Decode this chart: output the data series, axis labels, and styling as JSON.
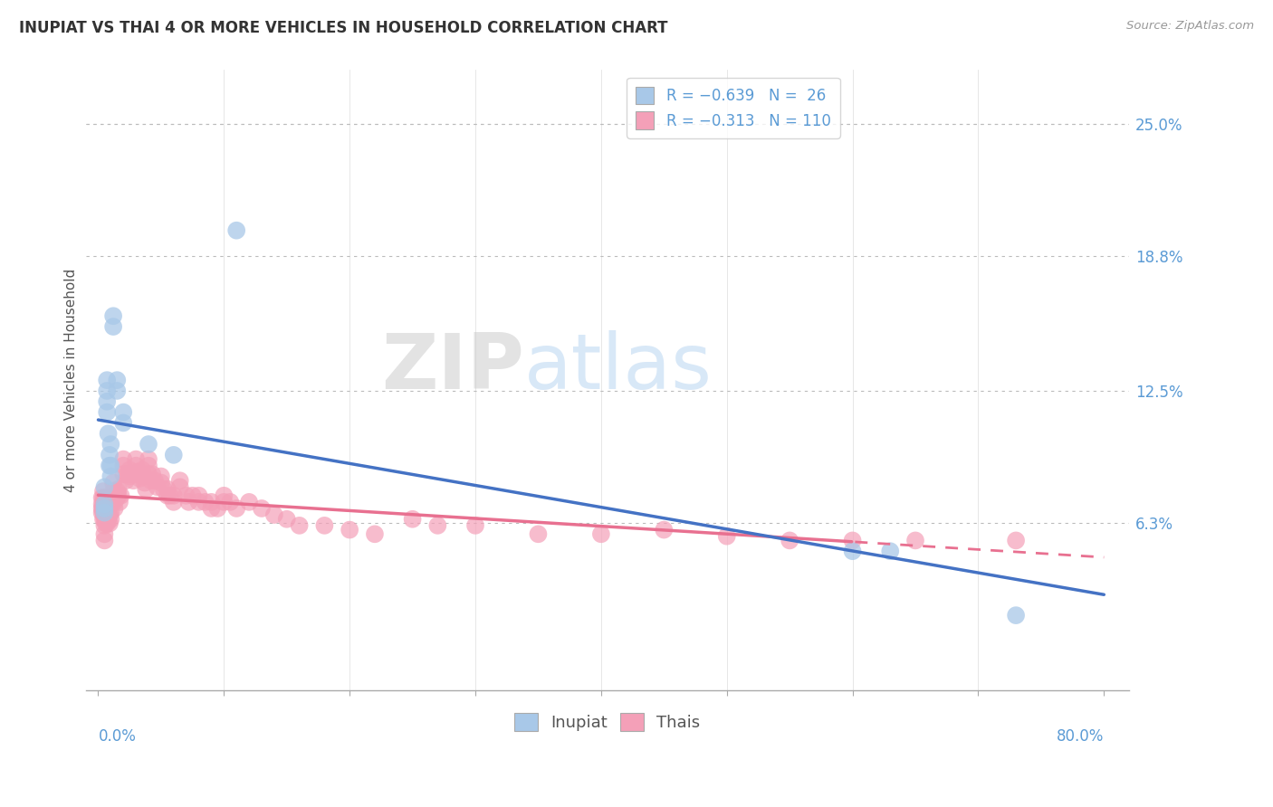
{
  "title": "INUPIAT VS THAI 4 OR MORE VEHICLES IN HOUSEHOLD CORRELATION CHART",
  "source": "Source: ZipAtlas.com",
  "ylabel": "4 or more Vehicles in Household",
  "color_inupiat": "#A8C8E8",
  "color_thai": "#F4A0B8",
  "color_line_inupiat": "#4472C4",
  "color_line_thai": "#E87090",
  "legend_r_inupiat": "R = –0.639",
  "legend_n_inupiat": "N =  26",
  "legend_r_thai": "R = –0.313",
  "legend_n_thai": "N = 110",
  "inupiat_x": [
    0.005,
    0.005,
    0.005,
    0.005,
    0.007,
    0.007,
    0.007,
    0.007,
    0.008,
    0.009,
    0.009,
    0.01,
    0.01,
    0.01,
    0.012,
    0.012,
    0.015,
    0.015,
    0.02,
    0.02,
    0.04,
    0.06,
    0.11,
    0.6,
    0.63,
    0.73
  ],
  "inupiat_y": [
    0.068,
    0.07,
    0.072,
    0.08,
    0.115,
    0.12,
    0.125,
    0.13,
    0.105,
    0.09,
    0.095,
    0.085,
    0.09,
    0.1,
    0.155,
    0.16,
    0.125,
    0.13,
    0.11,
    0.115,
    0.1,
    0.095,
    0.2,
    0.05,
    0.05,
    0.02
  ],
  "thai_x": [
    0.003,
    0.003,
    0.003,
    0.003,
    0.004,
    0.004,
    0.004,
    0.004,
    0.004,
    0.004,
    0.005,
    0.005,
    0.005,
    0.005,
    0.005,
    0.005,
    0.005,
    0.005,
    0.006,
    0.006,
    0.006,
    0.006,
    0.007,
    0.007,
    0.007,
    0.008,
    0.008,
    0.009,
    0.009,
    0.01,
    0.01,
    0.01,
    0.012,
    0.012,
    0.012,
    0.013,
    0.013,
    0.014,
    0.015,
    0.015,
    0.016,
    0.016,
    0.017,
    0.018,
    0.02,
    0.02,
    0.02,
    0.022,
    0.023,
    0.025,
    0.025,
    0.027,
    0.028,
    0.03,
    0.03,
    0.031,
    0.033,
    0.035,
    0.035,
    0.037,
    0.038,
    0.04,
    0.04,
    0.04,
    0.042,
    0.043,
    0.045,
    0.047,
    0.05,
    0.05,
    0.052,
    0.055,
    0.055,
    0.057,
    0.06,
    0.06,
    0.065,
    0.065,
    0.07,
    0.072,
    0.075,
    0.08,
    0.08,
    0.085,
    0.09,
    0.09,
    0.095,
    0.1,
    0.1,
    0.105,
    0.11,
    0.12,
    0.13,
    0.14,
    0.15,
    0.16,
    0.18,
    0.2,
    0.22,
    0.25,
    0.27,
    0.3,
    0.35,
    0.4,
    0.45,
    0.5,
    0.55,
    0.6,
    0.65,
    0.73
  ],
  "thai_y": [
    0.068,
    0.07,
    0.072,
    0.075,
    0.065,
    0.068,
    0.07,
    0.072,
    0.075,
    0.078,
    0.055,
    0.058,
    0.062,
    0.065,
    0.068,
    0.07,
    0.072,
    0.075,
    0.063,
    0.065,
    0.068,
    0.07,
    0.063,
    0.066,
    0.069,
    0.065,
    0.068,
    0.063,
    0.067,
    0.065,
    0.068,
    0.072,
    0.075,
    0.078,
    0.082,
    0.07,
    0.073,
    0.076,
    0.075,
    0.078,
    0.076,
    0.079,
    0.073,
    0.076,
    0.09,
    0.093,
    0.086,
    0.083,
    0.086,
    0.085,
    0.088,
    0.086,
    0.083,
    0.09,
    0.093,
    0.087,
    0.084,
    0.088,
    0.085,
    0.082,
    0.079,
    0.09,
    0.093,
    0.086,
    0.083,
    0.086,
    0.083,
    0.08,
    0.085,
    0.082,
    0.079,
    0.076,
    0.079,
    0.076,
    0.073,
    0.076,
    0.08,
    0.083,
    0.076,
    0.073,
    0.076,
    0.073,
    0.076,
    0.073,
    0.07,
    0.073,
    0.07,
    0.073,
    0.076,
    0.073,
    0.07,
    0.073,
    0.07,
    0.067,
    0.065,
    0.062,
    0.062,
    0.06,
    0.058,
    0.065,
    0.062,
    0.062,
    0.058,
    0.058,
    0.06,
    0.057,
    0.055,
    0.055,
    0.055,
    0.055
  ],
  "xlim": [
    0.0,
    0.8
  ],
  "ylim": [
    0.0,
    0.27
  ],
  "ytick_vals": [
    0.063,
    0.125,
    0.188,
    0.25
  ],
  "ytick_labels": [
    "6.3%",
    "12.5%",
    "18.8%",
    "25.0%"
  ],
  "xtick_show_left": "0.0%",
  "xtick_show_right": "80.0%",
  "watermark_zip": "ZIP",
  "watermark_atlas": "atlas"
}
